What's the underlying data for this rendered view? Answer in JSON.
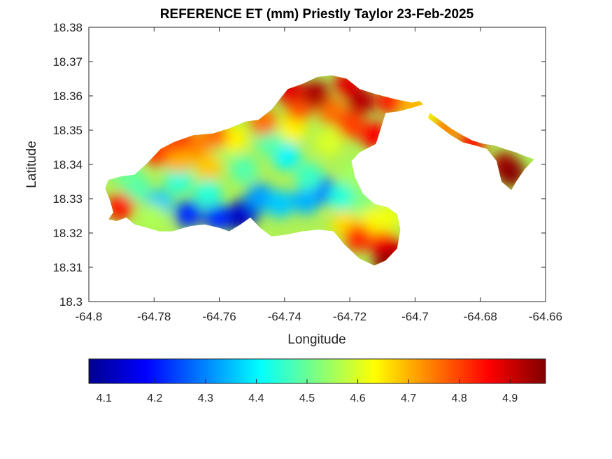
{
  "chart_data": {
    "type": "heatmap",
    "title": "REFERENCE ET (mm) Priestly Taylor 23-Feb-2025",
    "xlabel": "Longitude",
    "ylabel": "Latitude",
    "xlim": [
      -64.8,
      -64.66
    ],
    "ylim": [
      18.3,
      18.38
    ],
    "xticks": [
      "-64.8",
      "-64.78",
      "-64.76",
      "-64.74",
      "-64.72",
      "-64.7",
      "-64.68",
      "-64.66"
    ],
    "yticks": [
      "18.3",
      "18.31",
      "18.32",
      "18.33",
      "18.34",
      "18.35",
      "18.36",
      "18.37",
      "18.38"
    ],
    "colorbar": {
      "colormap": "jet",
      "range": [
        4.07,
        4.97
      ],
      "ticks": [
        "4.1",
        "4.2",
        "4.3",
        "4.4",
        "4.5",
        "4.6",
        "4.7",
        "4.8",
        "4.9"
      ]
    },
    "island_outline": [
      [
        -64.794,
        18.3355
      ],
      [
        -64.79,
        18.3365
      ],
      [
        -64.786,
        18.337
      ],
      [
        -64.782,
        18.3405
      ],
      [
        -64.778,
        18.3445
      ],
      [
        -64.774,
        18.3465
      ],
      [
        -64.768,
        18.3485
      ],
      [
        -64.762,
        18.349
      ],
      [
        -64.757,
        18.3505
      ],
      [
        -64.752,
        18.3525
      ],
      [
        -64.748,
        18.353
      ],
      [
        -64.744,
        18.356
      ],
      [
        -64.739,
        18.362
      ],
      [
        -64.7345,
        18.3635
      ],
      [
        -64.73,
        18.3655
      ],
      [
        -64.7255,
        18.366
      ],
      [
        -64.721,
        18.365
      ],
      [
        -64.717,
        18.362
      ],
      [
        -64.712,
        18.3605
      ],
      [
        -64.706,
        18.359
      ],
      [
        -64.701,
        18.358
      ],
      [
        -64.6985,
        18.3585
      ],
      [
        -64.6975,
        18.3575
      ],
      [
        -64.701,
        18.3565
      ],
      [
        -64.705,
        18.3555
      ],
      [
        -64.709,
        18.355
      ],
      [
        -64.7105,
        18.3505
      ],
      [
        -64.712,
        18.346
      ],
      [
        -64.717,
        18.3435
      ],
      [
        -64.7195,
        18.341
      ],
      [
        -64.7185,
        18.3365
      ],
      [
        -64.716,
        18.3315
      ],
      [
        -64.7125,
        18.3285
      ],
      [
        -64.7085,
        18.3275
      ],
      [
        -64.7055,
        18.3255
      ],
      [
        -64.7045,
        18.321
      ],
      [
        -64.7055,
        18.3155
      ],
      [
        -64.709,
        18.312
      ],
      [
        -64.7125,
        18.3105
      ],
      [
        -64.717,
        18.3125
      ],
      [
        -64.7215,
        18.3165
      ],
      [
        -64.725,
        18.3205
      ],
      [
        -64.7295,
        18.321
      ],
      [
        -64.7345,
        18.3205
      ],
      [
        -64.7395,
        18.3195
      ],
      [
        -64.744,
        18.319
      ],
      [
        -64.7475,
        18.3215
      ],
      [
        -64.7505,
        18.3245
      ],
      [
        -64.7535,
        18.3225
      ],
      [
        -64.757,
        18.3205
      ],
      [
        -64.76,
        18.3215
      ],
      [
        -64.7645,
        18.3225
      ],
      [
        -64.769,
        18.322
      ],
      [
        -64.7745,
        18.3205
      ],
      [
        -64.7785,
        18.3205
      ],
      [
        -64.782,
        18.3215
      ],
      [
        -64.786,
        18.3225
      ],
      [
        -64.7885,
        18.3245
      ],
      [
        -64.7915,
        18.3235
      ],
      [
        -64.794,
        18.324
      ],
      [
        -64.7925,
        18.326
      ],
      [
        -64.7935,
        18.3295
      ],
      [
        -64.795,
        18.333
      ]
    ],
    "east_arm_outline": [
      [
        -64.6955,
        18.355
      ],
      [
        -64.6925,
        18.353
      ],
      [
        -64.689,
        18.3505
      ],
      [
        -64.6855,
        18.3485
      ],
      [
        -64.6825,
        18.347
      ],
      [
        -64.679,
        18.346
      ],
      [
        -64.6755,
        18.3455
      ],
      [
        -64.6725,
        18.3445
      ],
      [
        -64.669,
        18.3435
      ],
      [
        -64.6665,
        18.3425
      ],
      [
        -64.6635,
        18.3415
      ],
      [
        -64.6665,
        18.3385
      ],
      [
        -64.669,
        18.335
      ],
      [
        -64.6705,
        18.3325
      ],
      [
        -64.6735,
        18.335
      ],
      [
        -64.675,
        18.341
      ],
      [
        -64.678,
        18.3445
      ],
      [
        -64.6815,
        18.3455
      ],
      [
        -64.6855,
        18.3465
      ],
      [
        -64.689,
        18.3485
      ],
      [
        -64.6925,
        18.351
      ],
      [
        -64.696,
        18.3535
      ]
    ],
    "field_points": [
      [
        -64.7545,
        18.3245,
        4.08
      ],
      [
        -64.7515,
        18.3265,
        4.14
      ],
      [
        -64.7605,
        18.3245,
        4.22
      ],
      [
        -64.7695,
        18.3255,
        4.22
      ],
      [
        -64.7285,
        18.3325,
        4.26
      ],
      [
        -64.7475,
        18.3305,
        4.32
      ],
      [
        -64.7785,
        18.3285,
        4.36
      ],
      [
        -64.7415,
        18.3285,
        4.36
      ],
      [
        -64.7725,
        18.3355,
        4.44
      ],
      [
        -64.7395,
        18.3425,
        4.4
      ],
      [
        -64.7335,
        18.3295,
        4.34
      ],
      [
        -64.7225,
        18.3305,
        4.44
      ],
      [
        -64.7155,
        18.3285,
        4.52
      ],
      [
        -64.7325,
        18.3365,
        4.46
      ],
      [
        -64.7445,
        18.3465,
        4.48
      ],
      [
        -64.7525,
        18.3385,
        4.48
      ],
      [
        -64.7855,
        18.3335,
        4.48
      ],
      [
        -64.7635,
        18.3315,
        4.44
      ],
      [
        -64.7805,
        18.3245,
        4.56
      ],
      [
        -64.7125,
        18.3235,
        4.64
      ],
      [
        -64.7185,
        18.3375,
        4.55
      ],
      [
        -64.7595,
        18.3445,
        4.54
      ],
      [
        -64.7885,
        18.3375,
        4.5
      ],
      [
        -64.7265,
        18.3465,
        4.6
      ],
      [
        -64.7375,
        18.3505,
        4.64
      ],
      [
        -64.7555,
        18.3475,
        4.64
      ],
      [
        -64.7215,
        18.3225,
        4.66
      ],
      [
        -64.7085,
        18.3245,
        4.62
      ],
      [
        -64.7635,
        18.3395,
        4.68
      ],
      [
        -64.7675,
        18.3455,
        4.74
      ],
      [
        -64.7725,
        18.3415,
        4.7
      ],
      [
        -64.7255,
        18.3555,
        4.76
      ],
      [
        -64.7355,
        18.3565,
        4.78
      ],
      [
        -64.7465,
        18.3525,
        4.76
      ],
      [
        -64.7615,
        18.3485,
        4.76
      ],
      [
        -64.7795,
        18.3435,
        4.8
      ],
      [
        -64.7905,
        18.3275,
        4.84
      ],
      [
        -64.7175,
        18.3185,
        4.82
      ],
      [
        -64.7195,
        18.3515,
        4.8
      ],
      [
        -64.7095,
        18.3165,
        4.86
      ],
      [
        -64.7385,
        18.3615,
        4.88
      ],
      [
        -64.7205,
        18.3635,
        4.88
      ],
      [
        -64.7075,
        18.3585,
        4.84
      ],
      [
        -64.7045,
        18.3135,
        4.9
      ],
      [
        -64.7305,
        18.3605,
        4.93
      ],
      [
        -64.7165,
        18.3585,
        4.92
      ],
      [
        -64.7125,
        18.3485,
        4.86
      ],
      [
        -64.7085,
        18.3115,
        4.95
      ],
      [
        -64.6725,
        18.3395,
        4.93
      ],
      [
        -64.6705,
        18.3375,
        4.96
      ],
      [
        -64.6825,
        18.3465,
        4.84
      ],
      [
        -64.6905,
        18.3505,
        4.74
      ],
      [
        -64.6975,
        18.3555,
        4.64
      ],
      [
        -64.7005,
        18.3575,
        4.7
      ],
      [
        -64.7725,
        18.3475,
        4.8
      ]
    ]
  }
}
